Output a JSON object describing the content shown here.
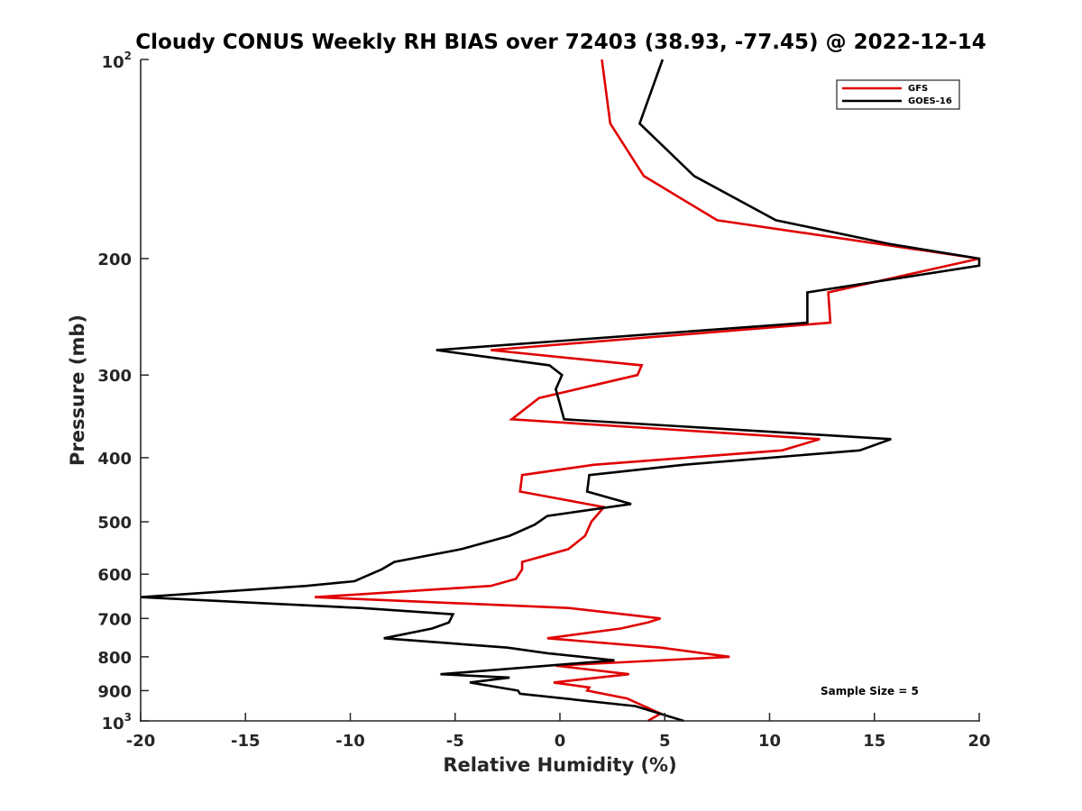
{
  "chart_data": {
    "type": "line",
    "title": "Cloudy CONUS Weekly RH BIAS over 72403 (38.93, -77.45) @ 2022-12-14",
    "xlabel": "Relative Humidity (%)",
    "ylabel": "Pressure (mb)",
    "xlim": [
      -20,
      20
    ],
    "ylim": [
      100,
      1000
    ],
    "yscale": "log",
    "y_reversed": true,
    "grid": false,
    "legend_position": "top-right",
    "x_ticks": [
      -20,
      -15,
      -10,
      -5,
      0,
      5,
      10,
      15,
      20
    ],
    "y_ticks": [
      {
        "value": 100,
        "base": "10",
        "exp": "2"
      },
      {
        "value": 200,
        "label": "200"
      },
      {
        "value": 300,
        "label": "300"
      },
      {
        "value": 400,
        "label": "400"
      },
      {
        "value": 500,
        "label": "500"
      },
      {
        "value": 600,
        "label": "600"
      },
      {
        "value": 700,
        "label": "700"
      },
      {
        "value": 800,
        "label": "800"
      },
      {
        "value": 900,
        "label": "900"
      },
      {
        "value": 1000,
        "base": "10",
        "exp": "3"
      }
    ],
    "annotation": "Sample Size = 5",
    "series": [
      {
        "name": "GFS",
        "color": "#e00000",
        "points": [
          [
            2.0,
            100
          ],
          [
            2.4,
            125
          ],
          [
            4.0,
            150
          ],
          [
            7.5,
            175
          ],
          [
            20.0,
            200
          ],
          [
            12.8,
            225
          ],
          [
            12.9,
            250
          ],
          [
            -3.3,
            275
          ],
          [
            3.9,
            290
          ],
          [
            3.7,
            300
          ],
          [
            -1.0,
            325
          ],
          [
            -2.3,
            350
          ],
          [
            12.4,
            375
          ],
          [
            10.6,
            390
          ],
          [
            1.6,
            410
          ],
          [
            -1.8,
            425
          ],
          [
            -1.9,
            450
          ],
          [
            2.1,
            475
          ],
          [
            1.5,
            500
          ],
          [
            1.2,
            525
          ],
          [
            0.4,
            550
          ],
          [
            -1.8,
            575
          ],
          [
            -1.8,
            590
          ],
          [
            -2.1,
            610
          ],
          [
            -3.3,
            625
          ],
          [
            -11.7,
            650
          ],
          [
            0.4,
            675
          ],
          [
            4.8,
            700
          ],
          [
            4.2,
            710
          ],
          [
            2.9,
            725
          ],
          [
            -0.6,
            750
          ],
          [
            4.8,
            775
          ],
          [
            8.1,
            800
          ],
          [
            -0.2,
            825
          ],
          [
            3.3,
            850
          ],
          [
            -0.3,
            875
          ],
          [
            1.4,
            890
          ],
          [
            1.3,
            900
          ],
          [
            3.2,
            925
          ],
          [
            4.8,
            975
          ],
          [
            4.2,
            1000
          ]
        ]
      },
      {
        "name": "GOES-16",
        "color": "#000000",
        "points": [
          [
            4.9,
            100
          ],
          [
            3.8,
            125
          ],
          [
            6.4,
            150
          ],
          [
            10.3,
            175
          ],
          [
            15.7,
            190
          ],
          [
            20.0,
            200
          ],
          [
            20.0,
            205
          ],
          [
            11.8,
            225
          ],
          [
            11.8,
            250
          ],
          [
            -5.9,
            275
          ],
          [
            -0.5,
            290
          ],
          [
            0.1,
            300
          ],
          [
            -0.2,
            315
          ],
          [
            0.2,
            350
          ],
          [
            15.8,
            375
          ],
          [
            14.3,
            390
          ],
          [
            5.9,
            410
          ],
          [
            1.4,
            425
          ],
          [
            1.3,
            450
          ],
          [
            3.4,
            470
          ],
          [
            -0.6,
            490
          ],
          [
            -1.2,
            505
          ],
          [
            -2.4,
            525
          ],
          [
            -4.7,
            550
          ],
          [
            -7.9,
            575
          ],
          [
            -8.5,
            590
          ],
          [
            -9.8,
            615
          ],
          [
            -12.1,
            625
          ],
          [
            -20.0,
            650
          ],
          [
            -9.5,
            675
          ],
          [
            -5.1,
            690
          ],
          [
            -5.3,
            710
          ],
          [
            -6.1,
            725
          ],
          [
            -8.4,
            750
          ],
          [
            -2.5,
            775
          ],
          [
            -0.6,
            790
          ],
          [
            2.6,
            810
          ],
          [
            -5.7,
            850
          ],
          [
            -2.4,
            860
          ],
          [
            -4.3,
            875
          ],
          [
            -2.0,
            900
          ],
          [
            -1.9,
            910
          ],
          [
            3.6,
            950
          ],
          [
            5.9,
            1000
          ]
        ]
      }
    ]
  }
}
